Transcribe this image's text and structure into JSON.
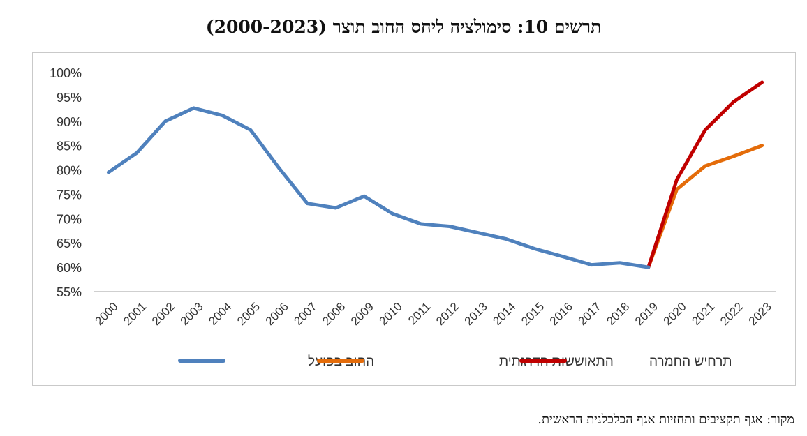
{
  "chart_title": "תרשים 10: סימולציה ליחס החוב תוצר (2000-2023)",
  "source_note": "מקור: אגף תקציבים ותחזיות אגף הכלכלנית הראשית.",
  "chart_data": {
    "type": "line",
    "title": "תרשים 10: סימולציה ליחס החוב תוצר (2000-2023)",
    "xlabel": "",
    "ylabel": "",
    "ylim": [
      55,
      100
    ],
    "y_ticks": [
      "55%",
      "60%",
      "65%",
      "70%",
      "75%",
      "80%",
      "85%",
      "90%",
      "95%",
      "100%"
    ],
    "y_tick_values": [
      55,
      60,
      65,
      70,
      75,
      80,
      85,
      90,
      95,
      100
    ],
    "categories": [
      "2000",
      "2001",
      "2002",
      "2003",
      "2004",
      "2005",
      "2006",
      "2007",
      "2008",
      "2009",
      "2010",
      "2011",
      "2012",
      "2013",
      "2014",
      "2015",
      "2016",
      "2017",
      "2018",
      "2019",
      "2020",
      "2021",
      "2022",
      "2023"
    ],
    "grid": false,
    "legend_position": "bottom",
    "series": [
      {
        "name": "החוב בפועל",
        "color": "#4f81bd",
        "values": [
          79.5,
          83.5,
          90.0,
          92.7,
          91.2,
          88.2,
          80.4,
          73.1,
          72.2,
          74.6,
          71.0,
          68.9,
          68.4,
          67.1,
          65.8,
          63.8,
          62.2,
          60.5,
          60.9,
          60.0,
          null,
          null,
          null,
          null
        ]
      },
      {
        "name": "התאוששות הדרגתית",
        "color": "#e46c0a",
        "values": [
          null,
          null,
          null,
          null,
          null,
          null,
          null,
          null,
          null,
          null,
          null,
          null,
          null,
          null,
          null,
          null,
          null,
          null,
          null,
          60.0,
          76.0,
          80.8,
          82.8,
          85.0
        ]
      },
      {
        "name": "תרחיש החמרה",
        "color": "#c00000",
        "values": [
          null,
          null,
          null,
          null,
          null,
          null,
          null,
          null,
          null,
          null,
          null,
          null,
          null,
          null,
          null,
          null,
          null,
          null,
          null,
          60.0,
          78.0,
          88.2,
          94.0,
          98.0
        ]
      }
    ]
  }
}
